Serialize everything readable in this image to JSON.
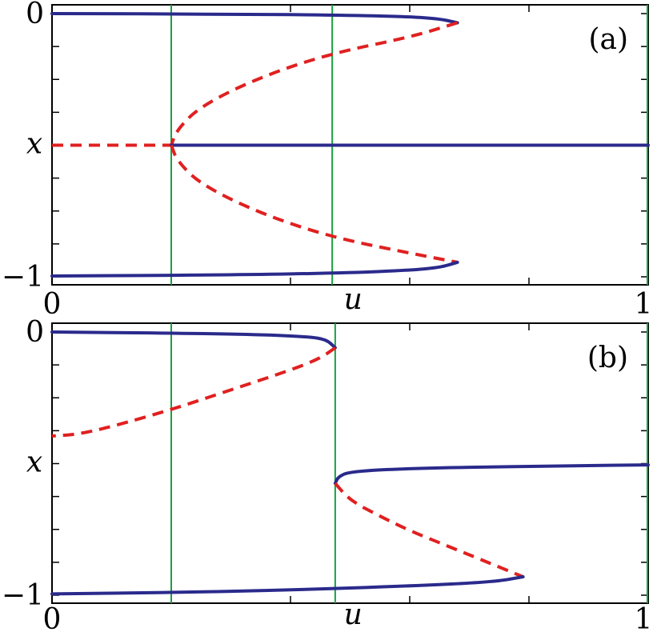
{
  "chart_data": [
    {
      "type": "line",
      "panel_label": "(a)",
      "xlabel": "u",
      "ylabel": "x",
      "xlim": [
        0,
        1
      ],
      "ylim": [
        -1,
        0
      ],
      "x_tick_labels": [
        {
          "value": 0,
          "label": "0"
        },
        {
          "value": 1,
          "label": "1"
        }
      ],
      "y_tick_labels": [
        {
          "value": 0,
          "label": "0"
        },
        {
          "value": -1,
          "label": "−1"
        }
      ],
      "grid": false,
      "vertical_lines": [
        0.2,
        0.47,
        1.0
      ],
      "series": [
        {
          "style": "solid",
          "color": "#2a2a8c",
          "x": [
            0,
            0.3,
            0.5,
            0.6,
            0.65,
            0.68
          ],
          "y": [
            0,
            -0.002,
            -0.006,
            -0.012,
            -0.02,
            -0.035
          ]
        },
        {
          "style": "dashed",
          "color": "#e02020",
          "x": [
            0.68,
            0.6,
            0.47,
            0.35,
            0.25,
            0.21,
            0.2
          ],
          "y": [
            -0.035,
            -0.09,
            -0.15,
            -0.24,
            -0.35,
            -0.44,
            -0.5
          ]
        },
        {
          "style": "dashed",
          "color": "#e02020",
          "x": [
            0,
            0.2
          ],
          "y": [
            -0.5,
            -0.5
          ]
        },
        {
          "style": "solid",
          "color": "#2a2a8c",
          "x": [
            0.2,
            1.0
          ],
          "y": [
            -0.5,
            -0.5
          ]
        },
        {
          "style": "dashed",
          "color": "#e02020",
          "x": [
            0.2,
            0.21,
            0.25,
            0.35,
            0.47,
            0.6,
            0.68
          ],
          "y": [
            -0.5,
            -0.56,
            -0.65,
            -0.76,
            -0.85,
            -0.91,
            -0.945
          ]
        },
        {
          "style": "solid",
          "color": "#2a2a8c",
          "x": [
            0.68,
            0.65,
            0.6,
            0.5,
            0.3,
            0
          ],
          "y": [
            -0.945,
            -0.965,
            -0.975,
            -0.985,
            -0.993,
            -0.997
          ]
        }
      ]
    },
    {
      "type": "line",
      "panel_label": "(b)",
      "xlabel": "u",
      "ylabel": "x",
      "xlim": [
        0,
        1
      ],
      "ylim": [
        -1,
        0
      ],
      "x_tick_labels": [
        {
          "value": 0,
          "label": "0"
        },
        {
          "value": 1,
          "label": "1"
        }
      ],
      "y_tick_labels": [
        {
          "value": 0,
          "label": "0"
        },
        {
          "value": -1,
          "label": "−1"
        }
      ],
      "grid": false,
      "vertical_lines": [
        0.2,
        0.475,
        1.0
      ],
      "series": [
        {
          "style": "solid",
          "color": "#2a2a8c",
          "x": [
            0,
            0.2,
            0.35,
            0.43,
            0.46,
            0.475
          ],
          "y": [
            0,
            -0.004,
            -0.01,
            -0.018,
            -0.028,
            -0.06
          ]
        },
        {
          "style": "dashed",
          "color": "#e02020",
          "x": [
            0.475,
            0.45,
            0.4,
            0.3,
            0.2,
            0.1,
            0.04,
            0
          ],
          "y": [
            -0.06,
            -0.1,
            -0.145,
            -0.22,
            -0.295,
            -0.36,
            -0.39,
            -0.395
          ]
        },
        {
          "style": "solid",
          "color": "#2a2a8c",
          "x": [
            1.0,
            0.8,
            0.6,
            0.5,
            0.48,
            0.475
          ],
          "y": [
            -0.505,
            -0.51,
            -0.518,
            -0.53,
            -0.55,
            -0.575
          ]
        },
        {
          "style": "dashed",
          "color": "#e02020",
          "x": [
            0.475,
            0.5,
            0.55,
            0.6,
            0.66,
            0.72,
            0.79
          ],
          "y": [
            -0.575,
            -0.64,
            -0.7,
            -0.755,
            -0.81,
            -0.865,
            -0.93
          ]
        },
        {
          "style": "solid",
          "color": "#2a2a8c",
          "x": [
            0.79,
            0.74,
            0.6,
            0.4,
            0.2,
            0
          ],
          "y": [
            -0.93,
            -0.95,
            -0.965,
            -0.98,
            -0.99,
            -0.995
          ]
        }
      ]
    }
  ]
}
